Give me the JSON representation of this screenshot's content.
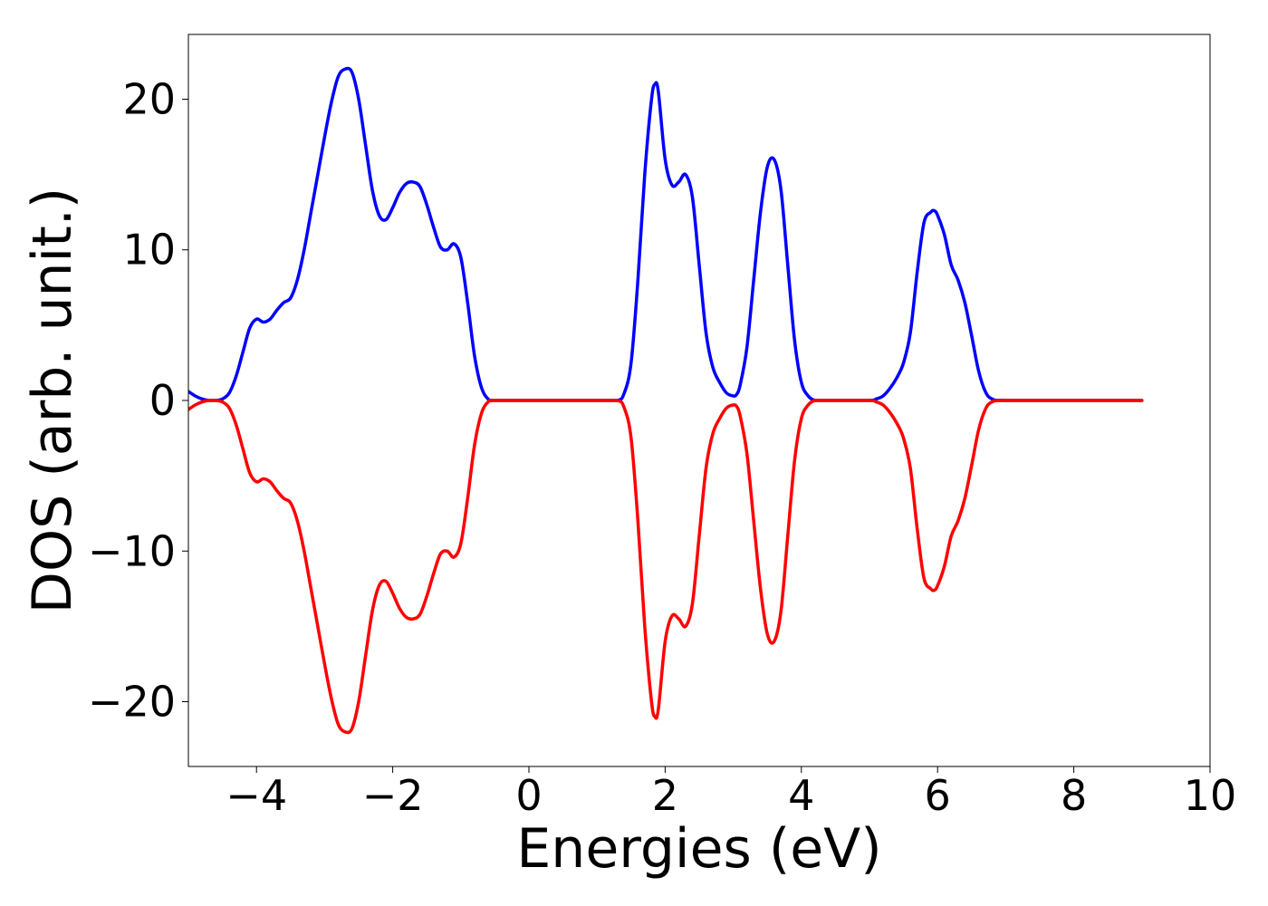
{
  "chart_data": {
    "type": "line",
    "title": "",
    "xlabel": "Energies (eV)",
    "ylabel": "DOS (arb. unit.)",
    "xlim": [
      -5,
      10
    ],
    "ylim": [
      -24.3,
      24.3
    ],
    "x_ticks": [
      -4,
      -2,
      0,
      2,
      4,
      6,
      8,
      10
    ],
    "x_tick_labels": [
      "−4",
      "−2",
      "0",
      "2",
      "4",
      "6",
      "8",
      "10"
    ],
    "y_ticks": [
      20,
      10,
      0,
      -10,
      -20
    ],
    "y_tick_labels": [
      "20",
      "10",
      "0",
      "−10",
      "−20"
    ],
    "grid": false,
    "legend": "none",
    "series": [
      {
        "color": "#0000ff",
        "x": [
          -5.0,
          -4.9,
          -4.8,
          -4.7,
          -4.6,
          -4.5,
          -4.4,
          -4.3,
          -4.2,
          -4.1,
          -4.0,
          -3.9,
          -3.8,
          -3.7,
          -3.6,
          -3.5,
          -3.4,
          -3.3,
          -3.2,
          -3.1,
          -3.0,
          -2.9,
          -2.8,
          -2.7,
          -2.6,
          -2.5,
          -2.4,
          -2.3,
          -2.2,
          -2.1,
          -2.0,
          -1.9,
          -1.8,
          -1.7,
          -1.6,
          -1.5,
          -1.4,
          -1.3,
          -1.2,
          -1.1,
          -1.0,
          -0.9,
          -0.8,
          -0.7,
          -0.6,
          -0.5,
          0.0,
          0.5,
          1.0,
          1.3,
          1.4,
          1.5,
          1.6,
          1.7,
          1.8,
          1.85,
          1.9,
          2.0,
          2.1,
          2.2,
          2.3,
          2.4,
          2.5,
          2.6,
          2.7,
          2.8,
          2.9,
          3.0,
          3.05,
          3.1,
          3.2,
          3.3,
          3.4,
          3.5,
          3.6,
          3.7,
          3.8,
          3.9,
          4.0,
          4.1,
          4.2,
          4.3,
          4.5,
          5.0,
          5.1,
          5.2,
          5.3,
          5.4,
          5.5,
          5.6,
          5.7,
          5.8,
          5.9,
          5.95,
          6.0,
          6.1,
          6.2,
          6.3,
          6.4,
          6.5,
          6.6,
          6.7,
          6.8,
          7.0,
          8.0,
          9.0
        ],
        "y": [
          0.6,
          0.3,
          0.1,
          0.0,
          0.0,
          0.1,
          0.5,
          1.6,
          3.2,
          4.8,
          5.4,
          5.2,
          5.4,
          6.0,
          6.5,
          6.8,
          8.0,
          10.0,
          12.5,
          15.0,
          17.5,
          19.8,
          21.5,
          22.0,
          21.8,
          20.0,
          17.0,
          14.0,
          12.3,
          12.0,
          12.8,
          13.8,
          14.4,
          14.5,
          14.2,
          13.0,
          11.5,
          10.2,
          10.0,
          10.4,
          9.5,
          6.5,
          3.0,
          0.9,
          0.1,
          0.0,
          0.0,
          0.0,
          0.0,
          0.0,
          0.5,
          2.5,
          8.0,
          15.0,
          20.0,
          21.0,
          20.5,
          16.0,
          14.3,
          14.5,
          15.0,
          13.5,
          9.0,
          4.5,
          2.2,
          1.2,
          0.5,
          0.3,
          0.4,
          1.0,
          3.5,
          8.0,
          12.5,
          15.5,
          16.0,
          14.0,
          9.0,
          4.0,
          1.2,
          0.3,
          0.0,
          0.0,
          0.0,
          0.0,
          0.1,
          0.3,
          0.8,
          1.5,
          2.5,
          4.5,
          8.5,
          11.8,
          12.5,
          12.6,
          12.3,
          11.0,
          9.0,
          8.0,
          6.5,
          4.3,
          2.0,
          0.6,
          0.1,
          0.0,
          0.0,
          0.0
        ]
      },
      {
        "color": "#ff0000",
        "x": [
          -5.0,
          -4.9,
          -4.8,
          -4.7,
          -4.6,
          -4.5,
          -4.4,
          -4.3,
          -4.2,
          -4.1,
          -4.0,
          -3.9,
          -3.8,
          -3.7,
          -3.6,
          -3.5,
          -3.4,
          -3.3,
          -3.2,
          -3.1,
          -3.0,
          -2.9,
          -2.8,
          -2.7,
          -2.6,
          -2.5,
          -2.4,
          -2.3,
          -2.2,
          -2.1,
          -2.0,
          -1.9,
          -1.8,
          -1.7,
          -1.6,
          -1.5,
          -1.4,
          -1.3,
          -1.2,
          -1.1,
          -1.0,
          -0.9,
          -0.8,
          -0.7,
          -0.6,
          -0.5,
          0.0,
          0.5,
          1.0,
          1.3,
          1.4,
          1.5,
          1.6,
          1.7,
          1.8,
          1.85,
          1.9,
          2.0,
          2.1,
          2.2,
          2.3,
          2.4,
          2.5,
          2.6,
          2.7,
          2.8,
          2.9,
          3.0,
          3.05,
          3.1,
          3.2,
          3.3,
          3.4,
          3.5,
          3.6,
          3.7,
          3.8,
          3.9,
          4.0,
          4.1,
          4.2,
          4.3,
          4.5,
          5.0,
          5.1,
          5.2,
          5.3,
          5.4,
          5.5,
          5.6,
          5.7,
          5.8,
          5.9,
          5.95,
          6.0,
          6.1,
          6.2,
          6.3,
          6.4,
          6.5,
          6.6,
          6.7,
          6.8,
          7.0,
          8.0,
          9.0
        ],
        "y": [
          -0.6,
          -0.3,
          -0.1,
          0.0,
          0.0,
          -0.1,
          -0.5,
          -1.6,
          -3.2,
          -4.8,
          -5.4,
          -5.2,
          -5.4,
          -6.0,
          -6.5,
          -6.8,
          -8.0,
          -10.0,
          -12.5,
          -15.0,
          -17.5,
          -19.8,
          -21.5,
          -22.0,
          -21.8,
          -20.0,
          -17.0,
          -14.0,
          -12.3,
          -12.0,
          -12.8,
          -13.8,
          -14.4,
          -14.5,
          -14.2,
          -13.0,
          -11.5,
          -10.2,
          -10.0,
          -10.4,
          -9.5,
          -6.5,
          -3.0,
          -0.9,
          -0.1,
          0.0,
          0.0,
          0.0,
          0.0,
          0.0,
          -0.5,
          -2.5,
          -8.0,
          -15.0,
          -20.0,
          -21.0,
          -20.5,
          -16.0,
          -14.3,
          -14.5,
          -15.0,
          -13.5,
          -9.0,
          -4.5,
          -2.2,
          -1.2,
          -0.5,
          -0.3,
          -0.4,
          -1.0,
          -3.5,
          -8.0,
          -12.5,
          -15.5,
          -16.0,
          -14.0,
          -9.0,
          -4.0,
          -1.2,
          -0.3,
          0.0,
          0.0,
          0.0,
          0.0,
          -0.1,
          -0.3,
          -0.8,
          -1.5,
          -2.5,
          -4.5,
          -8.5,
          -11.8,
          -12.5,
          -12.6,
          -12.3,
          -11.0,
          -9.0,
          -8.0,
          -6.5,
          -4.3,
          -2.0,
          -0.6,
          -0.1,
          0.0,
          0.0,
          0.0
        ]
      }
    ]
  }
}
